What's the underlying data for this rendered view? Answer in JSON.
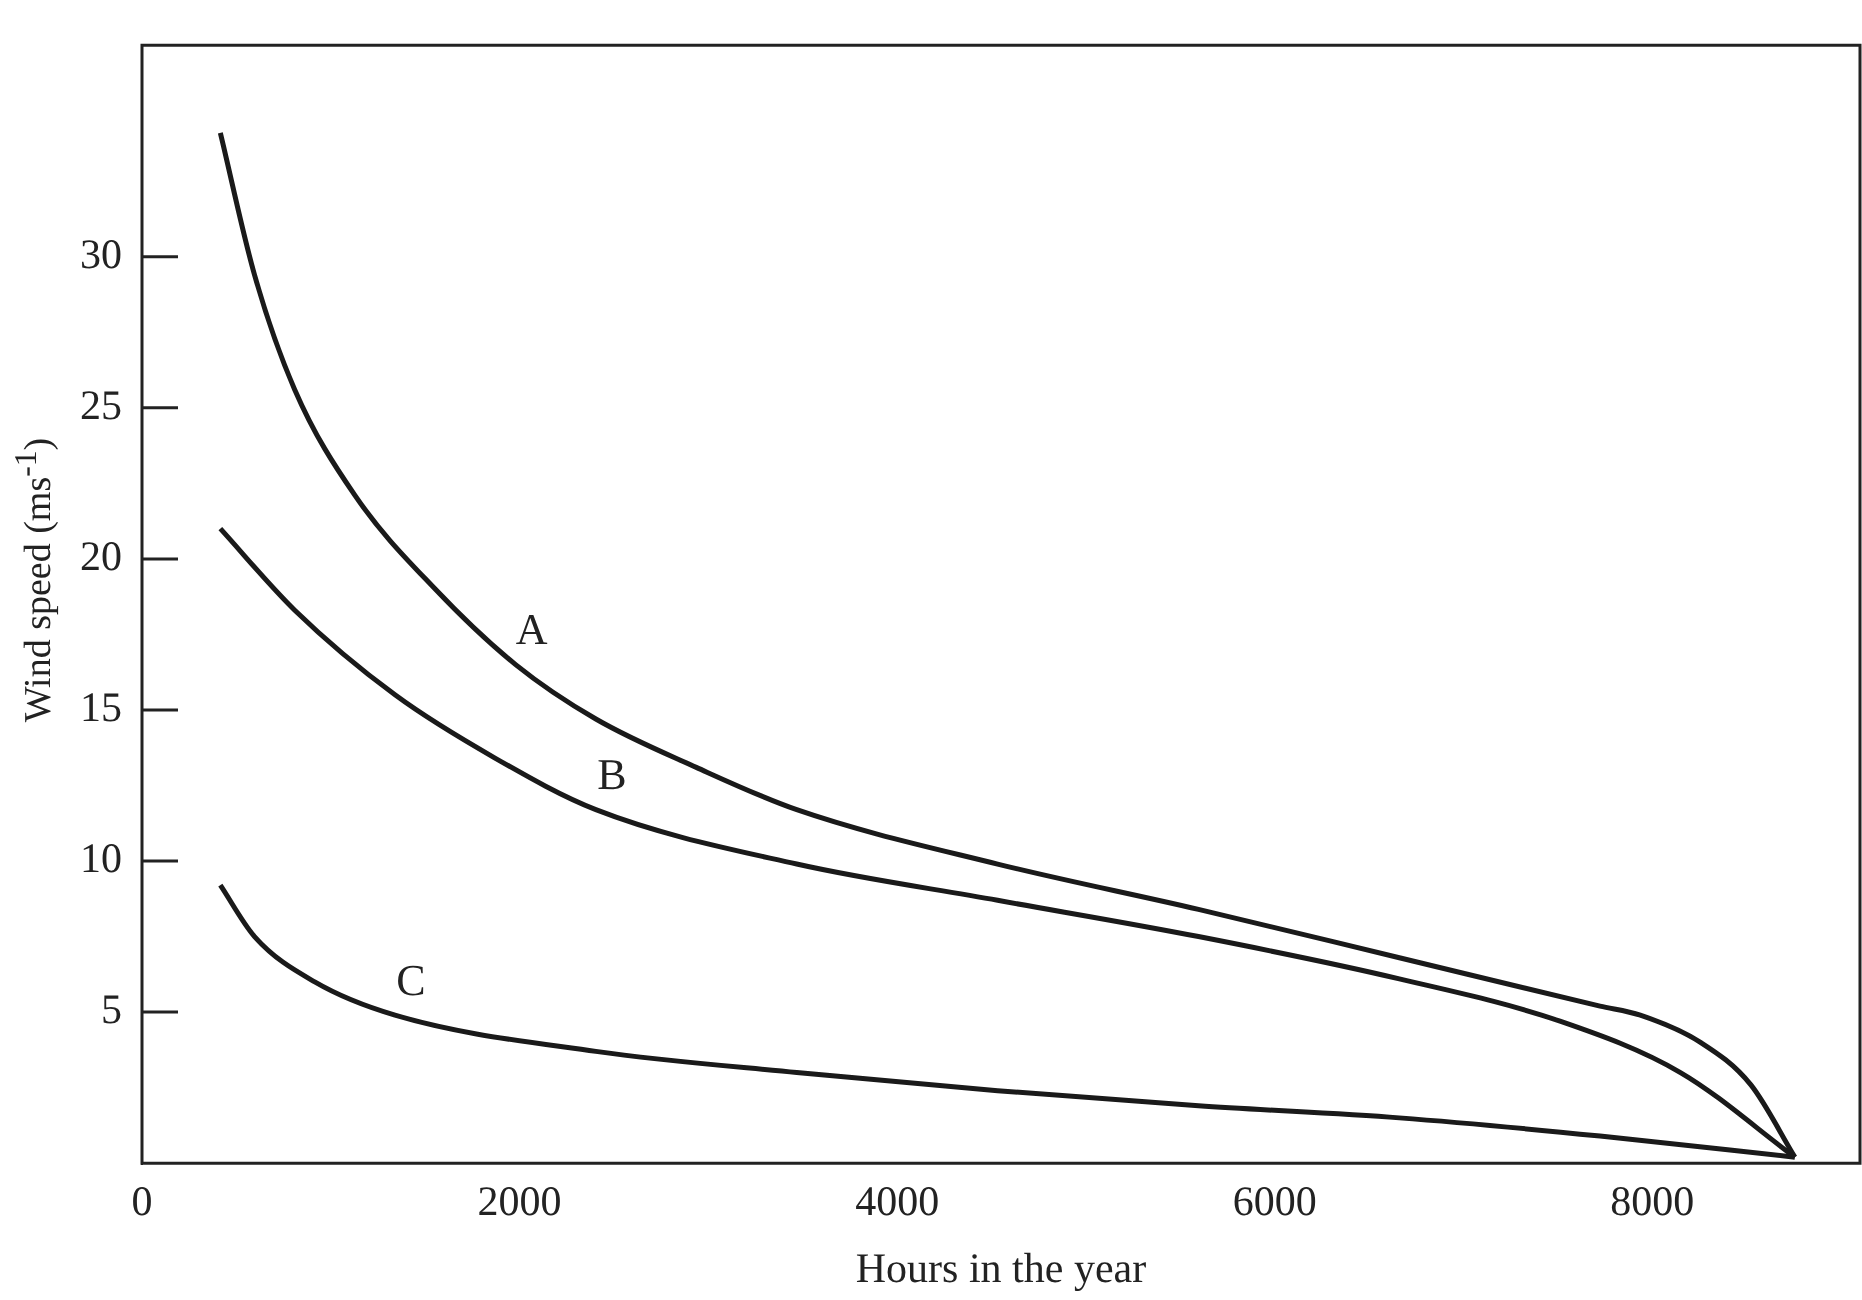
{
  "chart_data": {
    "type": "line",
    "xlabel": "Hours in the year",
    "ylabel": "Wind speed (ms$^{-1}$)",
    "xlim": [
      0,
      9100
    ],
    "xticks": [
      0,
      2000,
      4000,
      6000,
      8000
    ],
    "ylim": [
      0,
      37
    ],
    "yticks": [
      5,
      10,
      15,
      20,
      25,
      30
    ],
    "grid": false,
    "legend": false,
    "marker": "none",
    "line_style": "solid",
    "series": [
      {
        "name": "A",
        "color": "#1a1a1a",
        "x": [
          415,
          596,
          809,
          1128,
          1553,
          1979,
          2404,
          2936,
          3468,
          4532,
          5596,
          6660,
          7723,
          7936,
          8255,
          8521,
          8755
        ],
        "values": [
          34.1,
          29.4,
          25.6,
          22.1,
          19.0,
          16.5,
          14.7,
          13.1,
          11.7,
          9.9,
          8.4,
          6.8,
          5.2,
          4.9,
          4.0,
          2.6,
          0.2
        ]
      },
      {
        "name": "B",
        "color": "#1a1a1a",
        "x": [
          415,
          809,
          1340,
          1872,
          2404,
          3468,
          4532,
          5596,
          6660,
          7511,
          8149,
          8755
        ],
        "values": [
          21.0,
          18.3,
          15.5,
          13.4,
          11.7,
          9.9,
          8.7,
          7.5,
          6.1,
          4.7,
          3.0,
          0.2
        ]
      },
      {
        "name": "C",
        "color": "#1a1a1a",
        "x": [
          415,
          596,
          915,
          1340,
          2404,
          3468,
          4532,
          5596,
          6660,
          7723,
          8755
        ],
        "values": [
          9.2,
          7.5,
          6.0,
          4.9,
          3.7,
          3.0,
          2.4,
          1.9,
          1.5,
          0.9,
          0.2
        ]
      }
    ]
  }
}
